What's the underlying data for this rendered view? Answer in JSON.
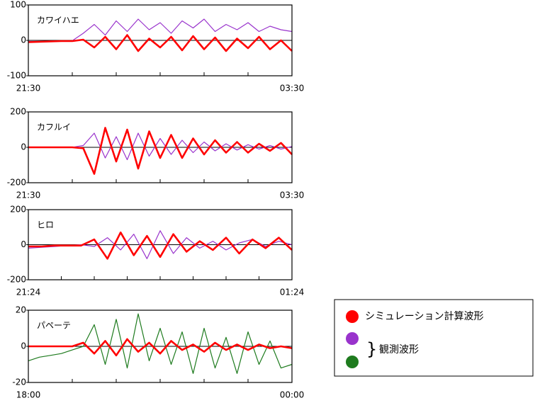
{
  "chart_data": [
    {
      "type": "line",
      "title": "カワイハエ",
      "x": [
        0,
        0.25,
        0.5,
        0.75,
        1,
        1.25,
        1.5,
        1.75,
        2,
        2.25,
        2.5,
        2.75,
        3,
        3.25,
        3.5,
        3.75,
        4,
        4.25,
        4.5,
        4.75,
        5,
        5.25,
        5.5,
        5.75,
        6
      ],
      "xlim": [
        0,
        6
      ],
      "xticks": [
        {
          "value": 0,
          "label": "21:30"
        },
        {
          "value": 6,
          "label": "03:30"
        }
      ],
      "xticks_minor": [
        1,
        2,
        3,
        4,
        5
      ],
      "ylim": [
        -100,
        100
      ],
      "yticks": [
        -100,
        0,
        100
      ],
      "series": [
        {
          "color": "#9933cc",
          "values": [
            -3,
            -3,
            -2,
            -2,
            -1,
            20,
            45,
            15,
            55,
            25,
            60,
            30,
            50,
            20,
            55,
            35,
            60,
            25,
            45,
            30,
            50,
            25,
            40,
            30,
            25
          ]
        },
        {
          "color": "#ff0000",
          "values": [
            -5,
            -4,
            -3,
            -2,
            -2,
            2,
            -20,
            10,
            -25,
            15,
            -30,
            5,
            -20,
            10,
            -28,
            12,
            -25,
            8,
            -30,
            5,
            -22,
            10,
            -25,
            0,
            -30
          ]
        }
      ]
    },
    {
      "type": "line",
      "title": "カフルイ",
      "x": [
        0,
        0.25,
        0.5,
        0.75,
        1,
        1.25,
        1.5,
        1.75,
        2,
        2.25,
        2.5,
        2.75,
        3,
        3.25,
        3.5,
        3.75,
        4,
        4.25,
        4.5,
        4.75,
        5,
        5.25,
        5.5,
        5.75,
        6
      ],
      "xlim": [
        0,
        6
      ],
      "xticks": [
        {
          "value": 0,
          "label": "21:30"
        },
        {
          "value": 6,
          "label": "03:30"
        }
      ],
      "xticks_minor": [
        1,
        2,
        3,
        4,
        5
      ],
      "ylim": [
        -200,
        200
      ],
      "yticks": [
        -200,
        0,
        200
      ],
      "series": [
        {
          "color": "#9933cc",
          "values": [
            0,
            0,
            0,
            0,
            0,
            10,
            80,
            -60,
            60,
            -70,
            80,
            -50,
            50,
            -40,
            40,
            -30,
            30,
            -20,
            20,
            -15,
            15,
            -10,
            10,
            -10,
            5
          ]
        },
        {
          "color": "#ff0000",
          "values": [
            0,
            0,
            0,
            0,
            0,
            -5,
            -150,
            110,
            -80,
            100,
            -120,
            90,
            -60,
            70,
            -60,
            50,
            -40,
            40,
            -30,
            30,
            -30,
            20,
            -20,
            25,
            -40
          ]
        }
      ]
    },
    {
      "type": "line",
      "title": "ヒロ",
      "x": [
        0,
        0.2,
        0.4,
        0.6,
        0.8,
        1,
        1.2,
        1.4,
        1.6,
        1.8,
        2,
        2.2,
        2.4,
        2.6,
        2.8,
        3,
        3.2,
        3.4,
        3.6,
        3.8,
        4
      ],
      "xlim": [
        0,
        4
      ],
      "xticks": [
        {
          "value": 0,
          "label": "21:24"
        },
        {
          "value": 4,
          "label": "01:24"
        }
      ],
      "xticks_minor": [
        0.5,
        1,
        1.5,
        2,
        2.5,
        3,
        3.5
      ],
      "ylim": [
        -200,
        200
      ],
      "yticks": [
        -200,
        0,
        200
      ],
      "series": [
        {
          "color": "#9933cc",
          "values": [
            -20,
            -15,
            -10,
            -5,
            0,
            -10,
            40,
            -30,
            60,
            -80,
            80,
            -50,
            40,
            -20,
            20,
            -30,
            10,
            30,
            -10,
            20,
            0
          ]
        },
        {
          "color": "#ff0000",
          "values": [
            -10,
            -10,
            -5,
            -5,
            -5,
            30,
            -80,
            70,
            -60,
            50,
            -70,
            60,
            -40,
            20,
            -30,
            40,
            -50,
            30,
            -20,
            40,
            -30
          ]
        }
      ]
    },
    {
      "type": "line",
      "title": "パペーテ",
      "x": [
        0,
        0.25,
        0.5,
        0.75,
        1,
        1.25,
        1.5,
        1.75,
        2,
        2.25,
        2.5,
        2.75,
        3,
        3.25,
        3.5,
        3.75,
        4,
        4.25,
        4.5,
        4.75,
        5,
        5.25,
        5.5,
        5.75,
        6
      ],
      "xlim": [
        0,
        6
      ],
      "xticks": [
        {
          "value": 0,
          "label": "18:00"
        },
        {
          "value": 6,
          "label": "00:00"
        }
      ],
      "xticks_minor": [
        1,
        2,
        3,
        4,
        5
      ],
      "ylim": [
        -20,
        20
      ],
      "yticks": [
        -20,
        0,
        20
      ],
      "series": [
        {
          "color": "#1e7b1e",
          "values": [
            -8,
            -6,
            -5,
            -4,
            -2,
            0,
            12,
            -10,
            15,
            -12,
            18,
            -8,
            10,
            -10,
            8,
            -15,
            10,
            -12,
            5,
            -15,
            8,
            -10,
            3,
            -12,
            -10
          ]
        },
        {
          "color": "#ff0000",
          "values": [
            0,
            0,
            0,
            0,
            0,
            2,
            -4,
            3,
            -5,
            4,
            -3,
            2,
            -4,
            3,
            -2,
            1,
            -3,
            2,
            -2,
            1,
            -2,
            1,
            -1,
            0,
            -1
          ]
        }
      ]
    }
  ],
  "legend": [
    {
      "colors": [
        "#ff0000"
      ],
      "label": "シミュレーション計算波形"
    },
    {
      "colors": [
        "#9933cc",
        "#1e7b1e"
      ],
      "label": "観測波形"
    }
  ]
}
